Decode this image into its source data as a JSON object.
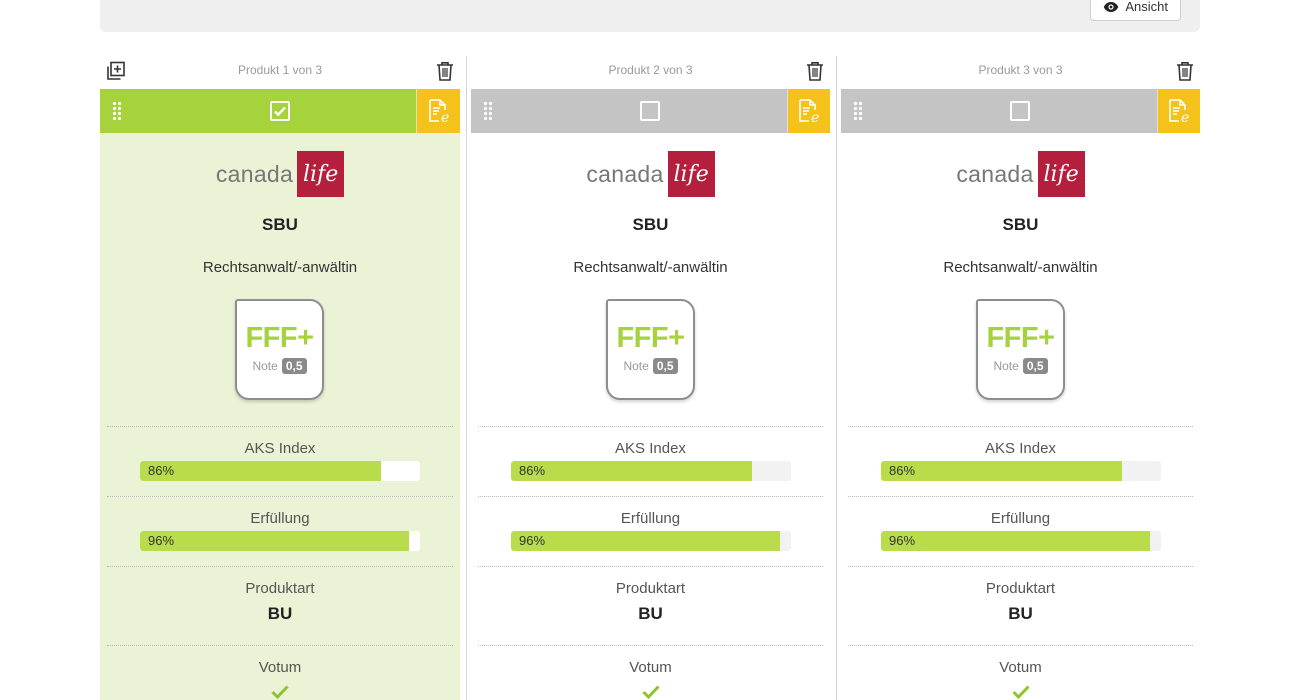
{
  "toolbar": {
    "view_label": "Ansicht",
    "view_icon": "eye-icon"
  },
  "colors": {
    "selected": "#a6d23c",
    "unselected": "#c4c4c4",
    "edit": "#f5c21b",
    "brand": "#b41f3d",
    "bar_fill": "#b8dc4a",
    "selected_bg": "#eaf3d5"
  },
  "labels": {
    "aks": "AKS Index",
    "fulfillment": "Erfüllung",
    "product_type": "Produktart",
    "votum": "Votum",
    "note": "Note"
  },
  "products": [
    {
      "count_label": "Produkt 1 von 3",
      "selected": true,
      "logo_word": "canada",
      "logo_box": "life",
      "name": "SBU",
      "occupation": "Rechtsanwalt/-anwältin",
      "rating": "FFF+",
      "note": "0,5",
      "aks": {
        "label": "86%",
        "value": 0.86
      },
      "fulfillment": {
        "label": "96%",
        "value": 0.96
      },
      "product_type": "BU",
      "votum": "check"
    },
    {
      "count_label": "Produkt 2 von 3",
      "selected": false,
      "logo_word": "canada",
      "logo_box": "life",
      "name": "SBU",
      "occupation": "Rechtsanwalt/-anwältin",
      "rating": "FFF+",
      "note": "0,5",
      "aks": {
        "label": "86%",
        "value": 0.86
      },
      "fulfillment": {
        "label": "96%",
        "value": 0.96
      },
      "product_type": "BU",
      "votum": "check"
    },
    {
      "count_label": "Produkt 3 von 3",
      "selected": false,
      "logo_word": "canada",
      "logo_box": "life",
      "name": "SBU",
      "occupation": "Rechtsanwalt/-anwältin",
      "rating": "FFF+",
      "note": "0,5",
      "aks": {
        "label": "86%",
        "value": 0.86
      },
      "fulfillment": {
        "label": "96%",
        "value": 0.96
      },
      "product_type": "BU",
      "votum": "check"
    }
  ]
}
